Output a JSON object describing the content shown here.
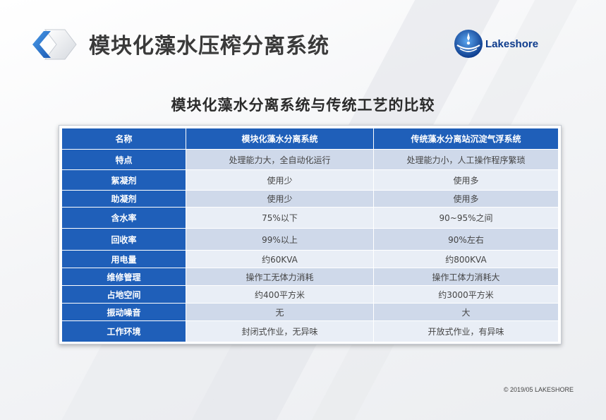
{
  "header": {
    "title": "模块化藻水压榨分离系统",
    "brand": "Lakeshore"
  },
  "subtitle": "模块化藻水分离系统与传统工艺的比较",
  "table": {
    "columns": [
      "名称",
      "模块化藻水分离系统",
      "传统藻水分离站沉淀气浮系统"
    ],
    "rows": [
      [
        "特点",
        "处理能力大，全自动化运行",
        "处理能力小，人工操作程序繁琐"
      ],
      [
        "絮凝剂",
        "使用少",
        "使用多"
      ],
      [
        "助凝剂",
        "使用少",
        "使用多"
      ],
      [
        "含水率",
        "75%以下",
        "90~95%之间"
      ],
      [
        "回收率",
        "99%以上",
        "90%左右"
      ],
      [
        "用电量",
        "约60KVA",
        "约800KVA"
      ],
      [
        "维修管理",
        "操作工无体力消耗",
        "操作工体力消耗大"
      ],
      [
        "占地空间",
        "约400平方米",
        "约3000平方米"
      ],
      [
        "振动噪音",
        "无",
        "大"
      ],
      [
        "工作环境",
        "封闭式作业，无异味",
        "开放式作业，有异味"
      ]
    ]
  },
  "footer": {
    "copyright": "© 2019/05 LAKESHORE"
  },
  "colors": {
    "header_blue": "#1f5fb9",
    "row_dark": "#cfd9ea",
    "row_light": "#e9eef6"
  },
  "icons": {
    "badge": "chevron-badge-icon",
    "brand_logo": "lakeshore-logo-icon"
  }
}
